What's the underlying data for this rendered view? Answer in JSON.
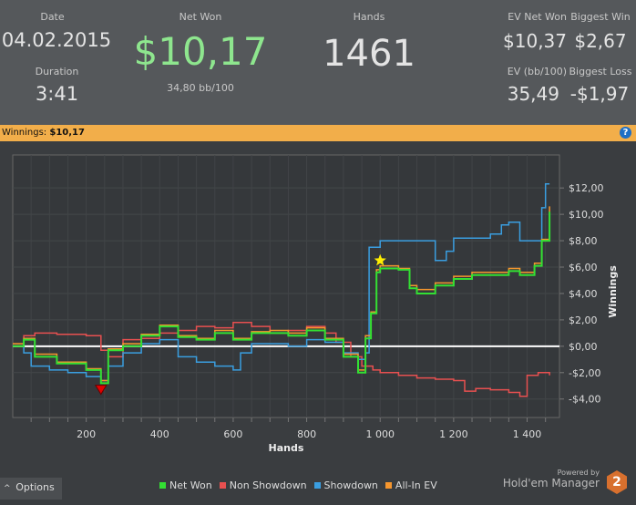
{
  "header": {
    "date_label": "Date",
    "date": "04.02.2015",
    "duration_label": "Duration",
    "duration": "3:41",
    "net_won_label": "Net Won",
    "net_won": "$10,17",
    "bb100": "34,80 bb/100",
    "hands_label": "Hands",
    "hands": "1461",
    "ev_net_won_label": "EV Net Won",
    "ev_net_won": "$10,37",
    "biggest_win_label": "Biggest Win",
    "biggest_win": "$2,67",
    "ev_bb100_label": "EV (bb/100)",
    "ev_bb100": "35,49",
    "biggest_loss_label": "Biggest Loss",
    "biggest_loss": "-$1,97"
  },
  "bar": {
    "label": "Winnings:",
    "value": "$10,17",
    "help": "?"
  },
  "footer": {
    "options": "Options",
    "options_icon": "chevron-up-icon",
    "powered_by": "Powered by",
    "brand": "Hold'em Manager",
    "brand_num": "2"
  },
  "colors": {
    "net_won": "#33e033",
    "non_showdown": "#e85050",
    "showdown": "#3a9ee0",
    "all_in_ev": "#f5962e",
    "net_won_big": "#8ee68e",
    "bar": "#f2ae4a"
  },
  "chart_data": {
    "type": "line",
    "xlabel": "Hands",
    "ylabel": "Winnings",
    "xlim": [
      0,
      1488
    ],
    "ylim": [
      -5.4,
      14.5
    ],
    "xticks": [
      200,
      400,
      600,
      800,
      1000,
      1200,
      1400
    ],
    "xtick_labels": [
      "200",
      "400",
      "600",
      "800",
      "1 000",
      "1 200",
      "1 400"
    ],
    "yticks": [
      -4,
      -2,
      0,
      2,
      4,
      6,
      8,
      10,
      12
    ],
    "ytick_labels": [
      "-$4,00",
      "-$2,00",
      "$0,00",
      "$2,00",
      "$4,00",
      "$6,00",
      "$8,00",
      "$10,00",
      "$12,00"
    ],
    "legend_position": "bottom",
    "series": [
      {
        "name": "Non Showdown",
        "key": "non_showdown",
        "x": [
          0,
          30,
          60,
          120,
          200,
          240,
          260,
          300,
          350,
          400,
          450,
          500,
          550,
          600,
          650,
          700,
          750,
          800,
          850,
          880,
          920,
          950,
          980,
          1000,
          1050,
          1100,
          1150,
          1200,
          1230,
          1260,
          1300,
          1350,
          1380,
          1400,
          1430,
          1461
        ],
        "y": [
          0,
          0.8,
          1,
          0.9,
          0.8,
          -0.3,
          -0.8,
          0.5,
          0.6,
          1,
          1.2,
          1.5,
          1.4,
          1.8,
          1.5,
          1,
          1.2,
          1.5,
          1,
          0.3,
          -0.8,
          -1.5,
          -1.8,
          -2,
          -2.2,
          -2.4,
          -2.5,
          -2.6,
          -3.4,
          -3.2,
          -3.3,
          -3.5,
          -3.8,
          -2.2,
          -2,
          -2.2
        ]
      },
      {
        "name": "Showdown",
        "key": "showdown",
        "x": [
          0,
          30,
          50,
          100,
          150,
          200,
          240,
          260,
          300,
          350,
          400,
          450,
          500,
          550,
          600,
          620,
          650,
          700,
          750,
          800,
          850,
          900,
          940,
          960,
          970,
          1000,
          1050,
          1100,
          1150,
          1180,
          1200,
          1250,
          1300,
          1330,
          1350,
          1380,
          1420,
          1440,
          1450,
          1461
        ],
        "y": [
          0,
          -0.5,
          -1.5,
          -1.8,
          -2,
          -2.3,
          -2.6,
          -1.5,
          -0.5,
          0.2,
          0.5,
          -0.8,
          -1.2,
          -1.5,
          -1.8,
          -0.5,
          0.2,
          0.2,
          0,
          0.5,
          0.3,
          -0.5,
          -1,
          -0.5,
          7.5,
          8,
          8,
          8,
          6.5,
          7.2,
          8.2,
          8.2,
          8.5,
          9.2,
          9.4,
          8,
          8,
          10.5,
          12.3,
          12.3
        ]
      },
      {
        "name": "All-In EV",
        "key": "all_in_ev",
        "x": [
          0,
          30,
          60,
          120,
          200,
          240,
          260,
          300,
          350,
          400,
          450,
          500,
          550,
          600,
          650,
          700,
          750,
          800,
          850,
          900,
          940,
          960,
          975,
          990,
          1000,
          1050,
          1080,
          1100,
          1150,
          1200,
          1250,
          1300,
          1350,
          1380,
          1420,
          1440,
          1461
        ],
        "y": [
          0.2,
          0.6,
          -0.6,
          -1.2,
          -1.7,
          -2.6,
          -0.2,
          0.2,
          0.9,
          1.6,
          0.8,
          0.6,
          1.2,
          0.6,
          1.1,
          1.2,
          1.0,
          1.4,
          0.6,
          -0.6,
          -1.8,
          0.8,
          2.6,
          5.8,
          6.1,
          5.9,
          4.6,
          4.3,
          4.8,
          5.3,
          5.6,
          5.6,
          5.9,
          5.6,
          6.3,
          8.1,
          10.6
        ]
      },
      {
        "name": "Net Won",
        "key": "net_won",
        "x": [
          0,
          30,
          60,
          120,
          200,
          240,
          260,
          300,
          350,
          400,
          450,
          500,
          550,
          600,
          650,
          700,
          750,
          800,
          850,
          900,
          940,
          960,
          975,
          990,
          1000,
          1050,
          1080,
          1100,
          1150,
          1200,
          1250,
          1300,
          1350,
          1380,
          1420,
          1440,
          1461
        ],
        "y": [
          0,
          0.5,
          -0.8,
          -1.3,
          -1.8,
          -2.8,
          -0.3,
          0,
          0.8,
          1.5,
          0.7,
          0.5,
          1,
          0.5,
          1,
          1,
          0.8,
          1.2,
          0.5,
          -0.8,
          -2,
          0.6,
          2.5,
          5.6,
          5.9,
          5.8,
          4.4,
          4,
          4.6,
          5.1,
          5.4,
          5.4,
          5.7,
          5.4,
          6.1,
          8,
          10.2
        ]
      }
    ],
    "markers": [
      {
        "type": "star",
        "x": 1000,
        "y": 6.5,
        "color": "#ffee00"
      },
      {
        "type": "triangle-down",
        "x": 240,
        "y": -3.3,
        "color": "#e00000"
      }
    ]
  }
}
